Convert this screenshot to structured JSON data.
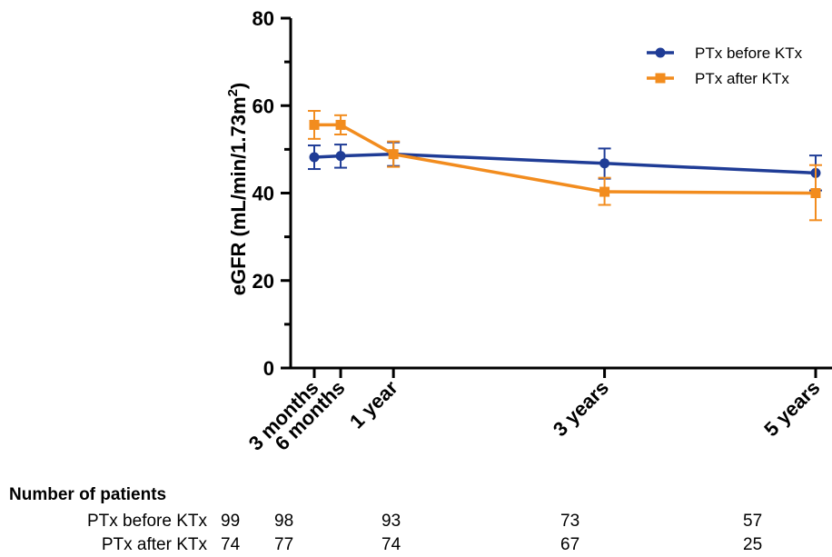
{
  "chart_data": {
    "type": "line",
    "title": "",
    "xlabel": "",
    "ylabel": "eGFR (mL/min/1.73m²)",
    "ylabel_main": "eGFR (mL/min/1.73m",
    "ylabel_sup": "2",
    "ylabel_tail": ")",
    "ylim": [
      0,
      80
    ],
    "yticks": [
      "0",
      "20",
      "40",
      "60",
      "80"
    ],
    "categories": [
      "3 months",
      "6 months",
      "1 year",
      "3 years",
      "5 years"
    ],
    "x_months": [
      3,
      6,
      12,
      36,
      60
    ],
    "grid": false,
    "legend_position": "top-right",
    "series": [
      {
        "name": "PTx before KTx",
        "color": "#1f3c96",
        "marker": "circle",
        "values": [
          48.2,
          48.5,
          48.9,
          46.8,
          44.6
        ],
        "err_low": [
          45.5,
          45.8,
          46.2,
          43.3,
          40.6
        ],
        "err_high": [
          50.9,
          51.1,
          51.6,
          50.2,
          48.6
        ]
      },
      {
        "name": "PTx after KTx",
        "color": "#f28c1e",
        "marker": "square",
        "values": [
          55.6,
          55.6,
          48.9,
          40.3,
          40.0
        ],
        "err_low": [
          52.4,
          53.4,
          46.0,
          37.3,
          33.8
        ],
        "err_high": [
          58.8,
          57.8,
          51.8,
          43.5,
          46.4
        ]
      }
    ]
  },
  "patients_table": {
    "title": "Number of patients",
    "rows": [
      {
        "label": "PTx before KTx",
        "values": [
          "99",
          "98",
          "93",
          "73",
          "57"
        ]
      },
      {
        "label": "PTx after KTx",
        "values": [
          "74",
          "77",
          "74",
          "67",
          "25"
        ]
      }
    ]
  }
}
